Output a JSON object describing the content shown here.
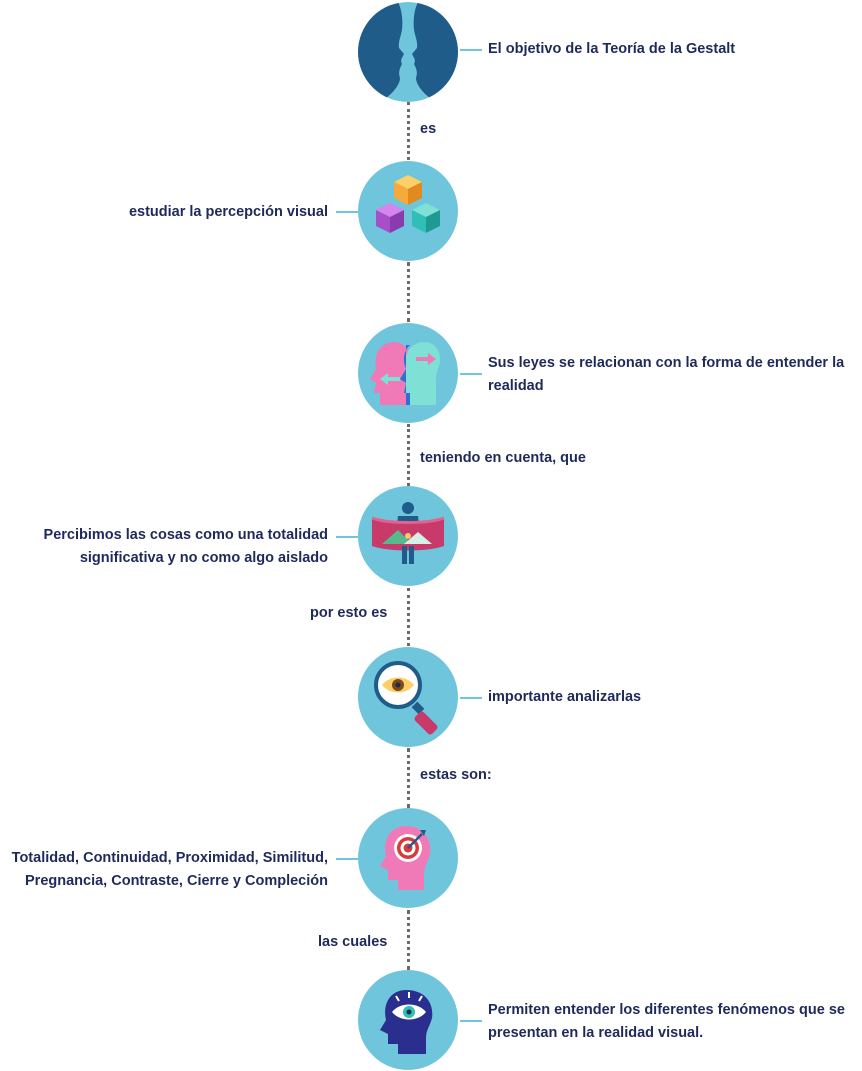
{
  "steps": [
    {
      "text": "El objetivo de la Teoría de la Gestalt",
      "icon": "two-faces-icon"
    },
    {
      "text": "estudiar la percepción visual",
      "icon": "cubes-icon"
    },
    {
      "text": "Sus leyes se relacionan con la forma de entender la realidad",
      "icon": "heads-exchange-icon"
    },
    {
      "text": "Percibimos las cosas como una totalidad significativa y no como algo aislado",
      "icon": "panorama-person-icon"
    },
    {
      "text": "importante analizarlas",
      "icon": "magnifier-eye-icon"
    },
    {
      "text": "Totalidad, Continuidad, Proximidad, Similitud, Pregnancia, Contraste, Cierre y Compleción",
      "icon": "head-target-icon"
    },
    {
      "text": "Permiten entender los diferentes fenómenos que se presentan en la realidad visual.",
      "icon": "head-eye-icon"
    }
  ],
  "links": [
    "es",
    "teniendo en cuenta, que",
    "por esto es",
    "estas son:",
    "las cuales"
  ],
  "colors": {
    "circle": "#6fc6dc",
    "text": "#1e2a5a",
    "dots": "#6b6b6b",
    "navy": "#1f5c8a",
    "pink": "#f07ab8",
    "purple": "#a64fc8",
    "orange": "#f7a93b",
    "teal": "#2fbfb6",
    "crimson": "#c73a6a"
  }
}
